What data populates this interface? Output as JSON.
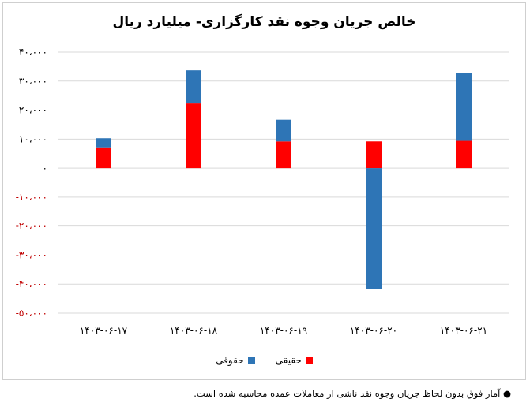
{
  "chart_data": {
    "type": "bar",
    "stacked": true,
    "title": "خالص جریان وجوه نقد کارگزاری- میلیارد ریال",
    "categories": [
      "۱۴۰۳-۰۶-۱۷",
      "۱۴۰۳-۰۶-۱۸",
      "۱۴۰۳-۰۶-۱۹",
      "۱۴۰۳-۰۶-۲۰",
      "۱۴۰۳-۰۶-۲۱"
    ],
    "series": [
      {
        "name": "حقیقی",
        "color": "#ff0000",
        "values": [
          6900,
          22300,
          9200,
          9200,
          9400
        ]
      },
      {
        "name": "حقوقی",
        "color": "#2e75b6",
        "values": [
          3400,
          11400,
          7500,
          -41800,
          23300
        ]
      }
    ],
    "ylim": [
      -50000,
      40000
    ],
    "yticks": [
      {
        "value": 40000,
        "label": "۴۰،۰۰۰"
      },
      {
        "value": 30000,
        "label": "۳۰،۰۰۰"
      },
      {
        "value": 20000,
        "label": "۲۰،۰۰۰"
      },
      {
        "value": 10000,
        "label": "۱۰،۰۰۰"
      },
      {
        "value": 0,
        "label": "۰"
      },
      {
        "value": -10000,
        "label": "-۱۰،۰۰۰"
      },
      {
        "value": -20000,
        "label": "-۲۰،۰۰۰"
      },
      {
        "value": -30000,
        "label": "-۳۰،۰۰۰"
      },
      {
        "value": -40000,
        "label": "-۴۰،۰۰۰"
      },
      {
        "value": -50000,
        "label": "-۵۰،۰۰۰"
      }
    ],
    "negative_tick_color": "#c00000",
    "grid": true,
    "legend_position": "bottom"
  },
  "footnote": "● آمار فوق بدون لحاظ جریان وجوه نقد ناشی از معاملات عمده محاسبه شده است."
}
